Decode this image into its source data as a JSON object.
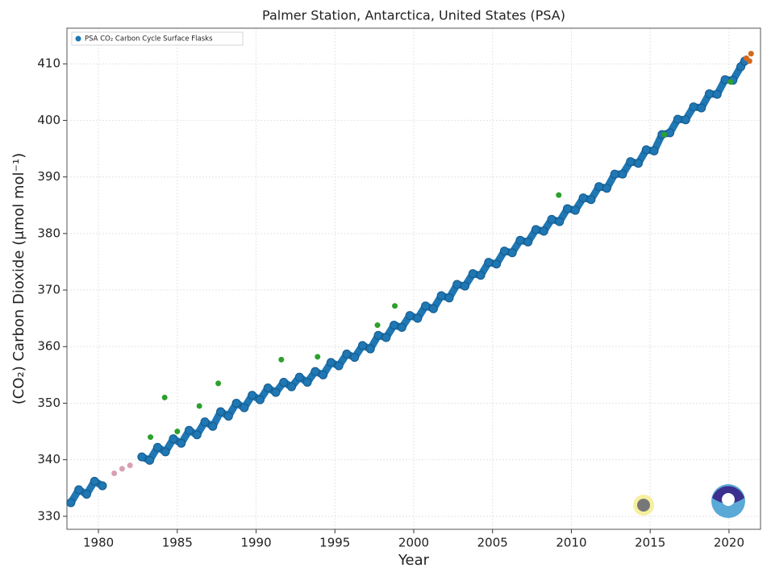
{
  "chart_data": {
    "type": "scatter",
    "title": "Palmer Station, Antarctica, United States (PSA)",
    "xlabel": "Year",
    "ylabel": "(CO₂) Carbon Dioxide (μmol mol⁻¹)",
    "xlim": [
      1978,
      2022
    ],
    "ylim": [
      327.7,
      416.3
    ],
    "xticks": [
      1980,
      1985,
      1990,
      1995,
      2000,
      2005,
      2010,
      2015,
      2020
    ],
    "yticks": [
      330,
      340,
      350,
      360,
      370,
      380,
      390,
      400,
      410
    ],
    "grid": true,
    "legend": "upper left",
    "series": [
      {
        "name": "PSA CO₂ Carbon Cycle Surface Flasks",
        "color": "#1f77b4",
        "x": [
          1978.25,
          1978.75,
          1979.25,
          1979.75,
          1980.25,
          1982.75,
          1983.25,
          1983.75,
          1984.25,
          1984.75,
          1985.25,
          1985.75,
          1986.25,
          1986.75,
          1987.25,
          1987.75,
          1988.25,
          1988.75,
          1989.25,
          1989.75,
          1990.25,
          1990.75,
          1991.25,
          1991.75,
          1992.25,
          1992.75,
          1993.25,
          1993.75,
          1994.25,
          1994.75,
          1995.25,
          1995.75,
          1996.25,
          1996.75,
          1997.25,
          1997.75,
          1998.25,
          1998.75,
          1999.25,
          1999.75,
          2000.25,
          2000.75,
          2001.25,
          2001.75,
          2002.25,
          2002.75,
          2003.25,
          2003.75,
          2004.25,
          2004.75,
          2005.25,
          2005.75,
          2006.25,
          2006.75,
          2007.25,
          2007.75,
          2008.25,
          2008.75,
          2009.25,
          2009.75,
          2010.25,
          2010.75,
          2011.25,
          2011.75,
          2012.25,
          2012.75,
          2013.25,
          2013.75,
          2014.25,
          2014.75,
          2015.25,
          2015.75,
          2016.25,
          2016.75,
          2017.25,
          2017.75,
          2018.25,
          2018.75,
          2019.25,
          2019.75,
          2020.25,
          2020.75,
          2021.0
        ],
        "values": [
          332.4,
          334.7,
          333.9,
          336.2,
          335.4,
          340.5,
          339.9,
          342.2,
          341.4,
          343.7,
          342.9,
          345.2,
          344.4,
          346.7,
          345.9,
          348.5,
          347.7,
          350.0,
          349.2,
          351.4,
          350.6,
          352.7,
          351.9,
          353.7,
          352.9,
          354.6,
          353.7,
          355.6,
          355.0,
          357.2,
          356.6,
          358.7,
          358.1,
          360.2,
          359.6,
          362.0,
          361.6,
          363.8,
          363.4,
          365.5,
          365.0,
          367.2,
          366.7,
          369.0,
          368.6,
          371.0,
          370.7,
          372.9,
          372.6,
          374.9,
          374.6,
          376.9,
          376.6,
          378.8,
          378.5,
          380.7,
          380.4,
          382.5,
          382.1,
          384.4,
          384.1,
          386.3,
          386.0,
          388.3,
          388.0,
          390.5,
          390.5,
          392.7,
          392.4,
          394.8,
          394.6,
          397.5,
          397.8,
          400.2,
          400.1,
          402.4,
          402.2,
          404.7,
          404.6,
          407.2,
          407.1,
          409.5,
          410.5
        ]
      },
      {
        "color": "#2ca02c",
        "x": [
          1983.3,
          1984.2,
          1985.0,
          1986.4,
          1987.6,
          1991.6,
          1993.9,
          1997.7,
          1998.8,
          2009.2,
          2015.9,
          2020.1
        ],
        "values": [
          344,
          351,
          345,
          349.5,
          353.5,
          357.7,
          358.2,
          363.8,
          367.2,
          386.8,
          397.5,
          406.8
        ]
      },
      {
        "color": "#d9a0b0",
        "x": [
          1981.0,
          1981.5,
          1982.0
        ],
        "values": [
          337.6,
          338.4,
          339.0
        ]
      },
      {
        "color": "#d2691e",
        "x": [
          2021.1,
          2021.3,
          2021.4
        ],
        "values": [
          411.0,
          410.5,
          411.8
        ]
      }
    ]
  }
}
